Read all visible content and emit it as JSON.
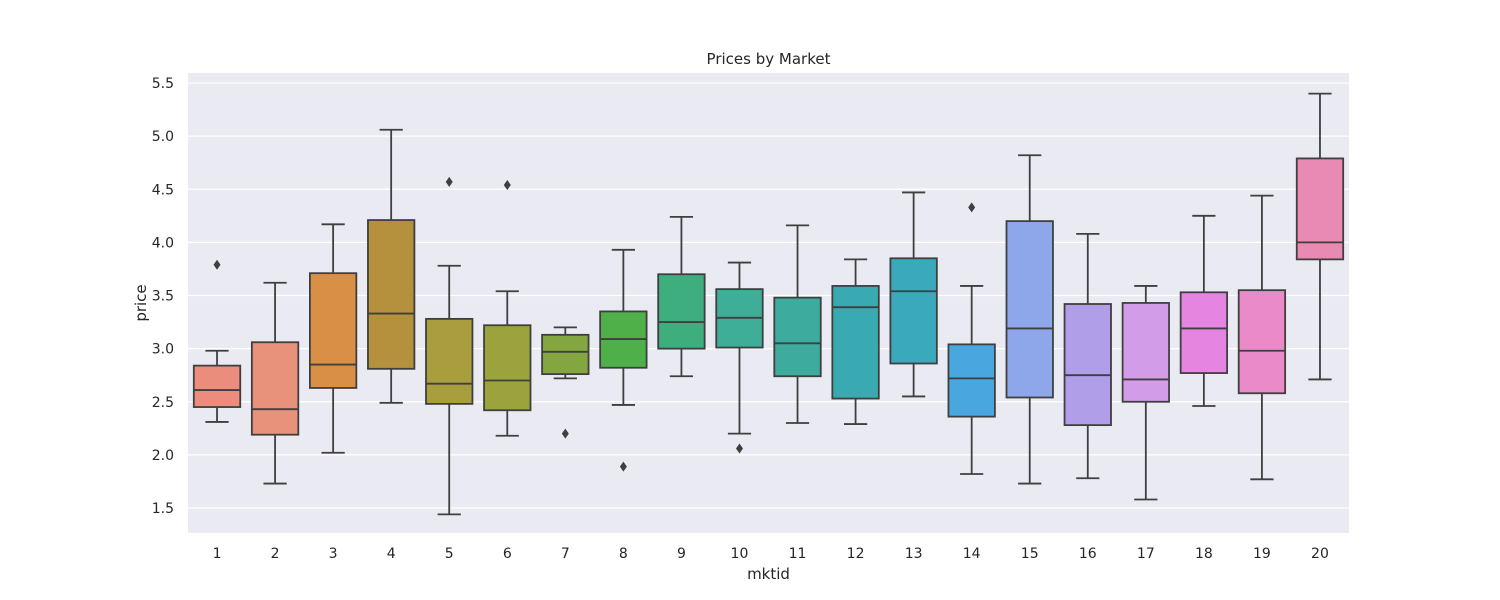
{
  "chart_data": {
    "type": "boxplot",
    "title": "Prices by Market",
    "xlabel": "mktid",
    "ylabel": "price",
    "ylim": [
      1.25,
      5.6
    ],
    "yticks": [
      1.5,
      2.0,
      2.5,
      3.0,
      3.5,
      4.0,
      4.5,
      5.0,
      5.5
    ],
    "grid": true,
    "legend": "none",
    "categories": [
      "1",
      "2",
      "3",
      "4",
      "5",
      "6",
      "7",
      "8",
      "9",
      "10",
      "11",
      "12",
      "13",
      "14",
      "15",
      "16",
      "17",
      "18",
      "19",
      "20"
    ],
    "colors": [
      "#ec8c7d",
      "#e8927c",
      "#d98f45",
      "#b5913e",
      "#a89e3e",
      "#9aa33c",
      "#84a640",
      "#4fb04a",
      "#3fae7f",
      "#3fae99",
      "#3eab9f",
      "#39aab1",
      "#3aa9bb",
      "#4aa6df",
      "#8ea7ea",
      "#b09fe8",
      "#d39ce8",
      "#e585e2",
      "#ea8ac9",
      "#e98ab3"
    ],
    "boxes": [
      {
        "label": "1",
        "whislo": 2.31,
        "q1": 2.45,
        "med": 2.61,
        "q3": 2.84,
        "whishi": 2.98,
        "fliers": [
          3.79
        ]
      },
      {
        "label": "2",
        "whislo": 1.73,
        "q1": 2.19,
        "med": 2.43,
        "q3": 3.06,
        "whishi": 3.62,
        "fliers": []
      },
      {
        "label": "3",
        "whislo": 2.02,
        "q1": 2.63,
        "med": 2.85,
        "q3": 3.71,
        "whishi": 4.17,
        "fliers": []
      },
      {
        "label": "4",
        "whislo": 2.49,
        "q1": 2.81,
        "med": 3.33,
        "q3": 4.21,
        "whishi": 5.06,
        "fliers": []
      },
      {
        "label": "5",
        "whislo": 1.44,
        "q1": 2.48,
        "med": 2.67,
        "q3": 3.28,
        "whishi": 3.78,
        "fliers": [
          4.57
        ]
      },
      {
        "label": "6",
        "whislo": 2.18,
        "q1": 2.42,
        "med": 2.7,
        "q3": 3.22,
        "whishi": 3.54,
        "fliers": [
          4.54
        ]
      },
      {
        "label": "7",
        "whislo": 2.72,
        "q1": 2.76,
        "med": 2.97,
        "q3": 3.13,
        "whishi": 3.2,
        "fliers": [
          2.2
        ]
      },
      {
        "label": "8",
        "whislo": 2.47,
        "q1": 2.82,
        "med": 3.09,
        "q3": 3.35,
        "whishi": 3.93,
        "fliers": [
          1.89
        ]
      },
      {
        "label": "9",
        "whislo": 2.74,
        "q1": 3.0,
        "med": 3.25,
        "q3": 3.7,
        "whishi": 4.24,
        "fliers": []
      },
      {
        "label": "10",
        "whislo": 2.2,
        "q1": 3.01,
        "med": 3.29,
        "q3": 3.56,
        "whishi": 3.81,
        "fliers": [
          2.06
        ]
      },
      {
        "label": "11",
        "whislo": 2.3,
        "q1": 2.74,
        "med": 3.05,
        "q3": 3.48,
        "whishi": 4.16,
        "fliers": []
      },
      {
        "label": "12",
        "whislo": 2.29,
        "q1": 2.53,
        "med": 3.39,
        "q3": 3.59,
        "whishi": 3.84,
        "fliers": []
      },
      {
        "label": "13",
        "whislo": 2.55,
        "q1": 2.86,
        "med": 3.54,
        "q3": 3.85,
        "whishi": 4.47,
        "fliers": []
      },
      {
        "label": "14",
        "whislo": 1.82,
        "q1": 2.36,
        "med": 2.72,
        "q3": 3.04,
        "whishi": 3.59,
        "fliers": [
          4.33
        ]
      },
      {
        "label": "15",
        "whislo": 1.73,
        "q1": 2.54,
        "med": 3.19,
        "q3": 4.2,
        "whishi": 4.82,
        "fliers": []
      },
      {
        "label": "16",
        "whislo": 1.78,
        "q1": 2.28,
        "med": 2.75,
        "q3": 3.42,
        "whishi": 4.08,
        "fliers": []
      },
      {
        "label": "17",
        "whislo": 1.58,
        "q1": 2.5,
        "med": 2.71,
        "q3": 3.43,
        "whishi": 3.59,
        "fliers": []
      },
      {
        "label": "18",
        "whislo": 2.46,
        "q1": 2.77,
        "med": 3.19,
        "q3": 3.53,
        "whishi": 4.25,
        "fliers": []
      },
      {
        "label": "19",
        "whislo": 1.77,
        "q1": 2.58,
        "med": 2.98,
        "q3": 3.55,
        "whishi": 4.44,
        "fliers": []
      },
      {
        "label": "20",
        "whislo": 2.71,
        "q1": 3.84,
        "med": 4.0,
        "q3": 4.79,
        "whishi": 5.4,
        "fliers": []
      }
    ]
  }
}
